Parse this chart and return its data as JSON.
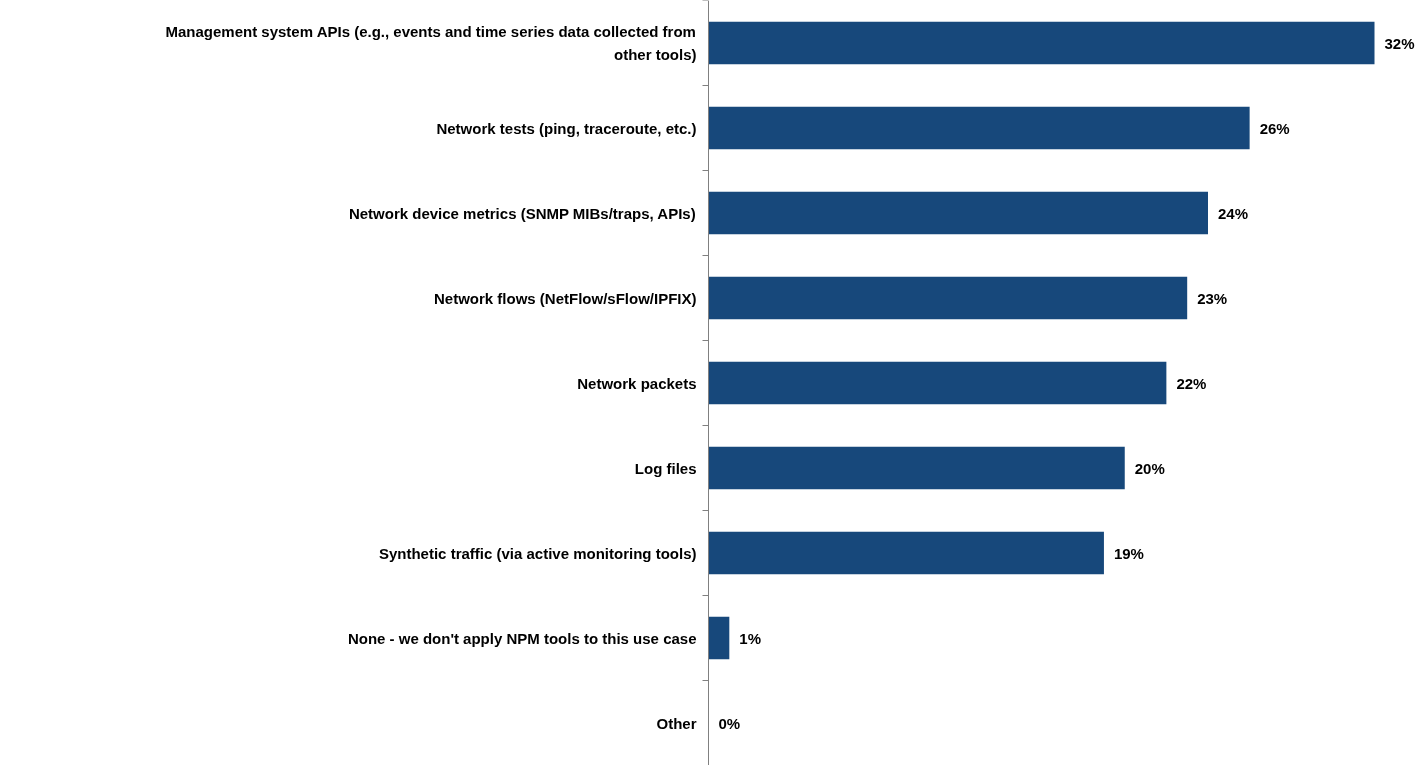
{
  "chart_data": {
    "type": "bar",
    "orientation": "horizontal",
    "color": "#17487b",
    "categories": [
      "Management system APIs (e.g., events and time series data collected from other tools)",
      "Network tests (ping, traceroute, etc.)",
      "Network device metrics (SNMP MIBs/traps, APIs)",
      "Network flows (NetFlow/sFlow/IPFIX)",
      "Network packets",
      "Log files",
      "Synthetic traffic (via active monitoring tools)",
      "None - we don't apply NPM tools to this use case",
      "Other"
    ],
    "values": [
      32,
      26,
      24,
      23,
      22,
      20,
      19,
      1,
      0
    ],
    "value_labels": [
      "32%",
      "26%",
      "24%",
      "23%",
      "22%",
      "20%",
      "19%",
      "1%",
      "0%"
    ]
  }
}
